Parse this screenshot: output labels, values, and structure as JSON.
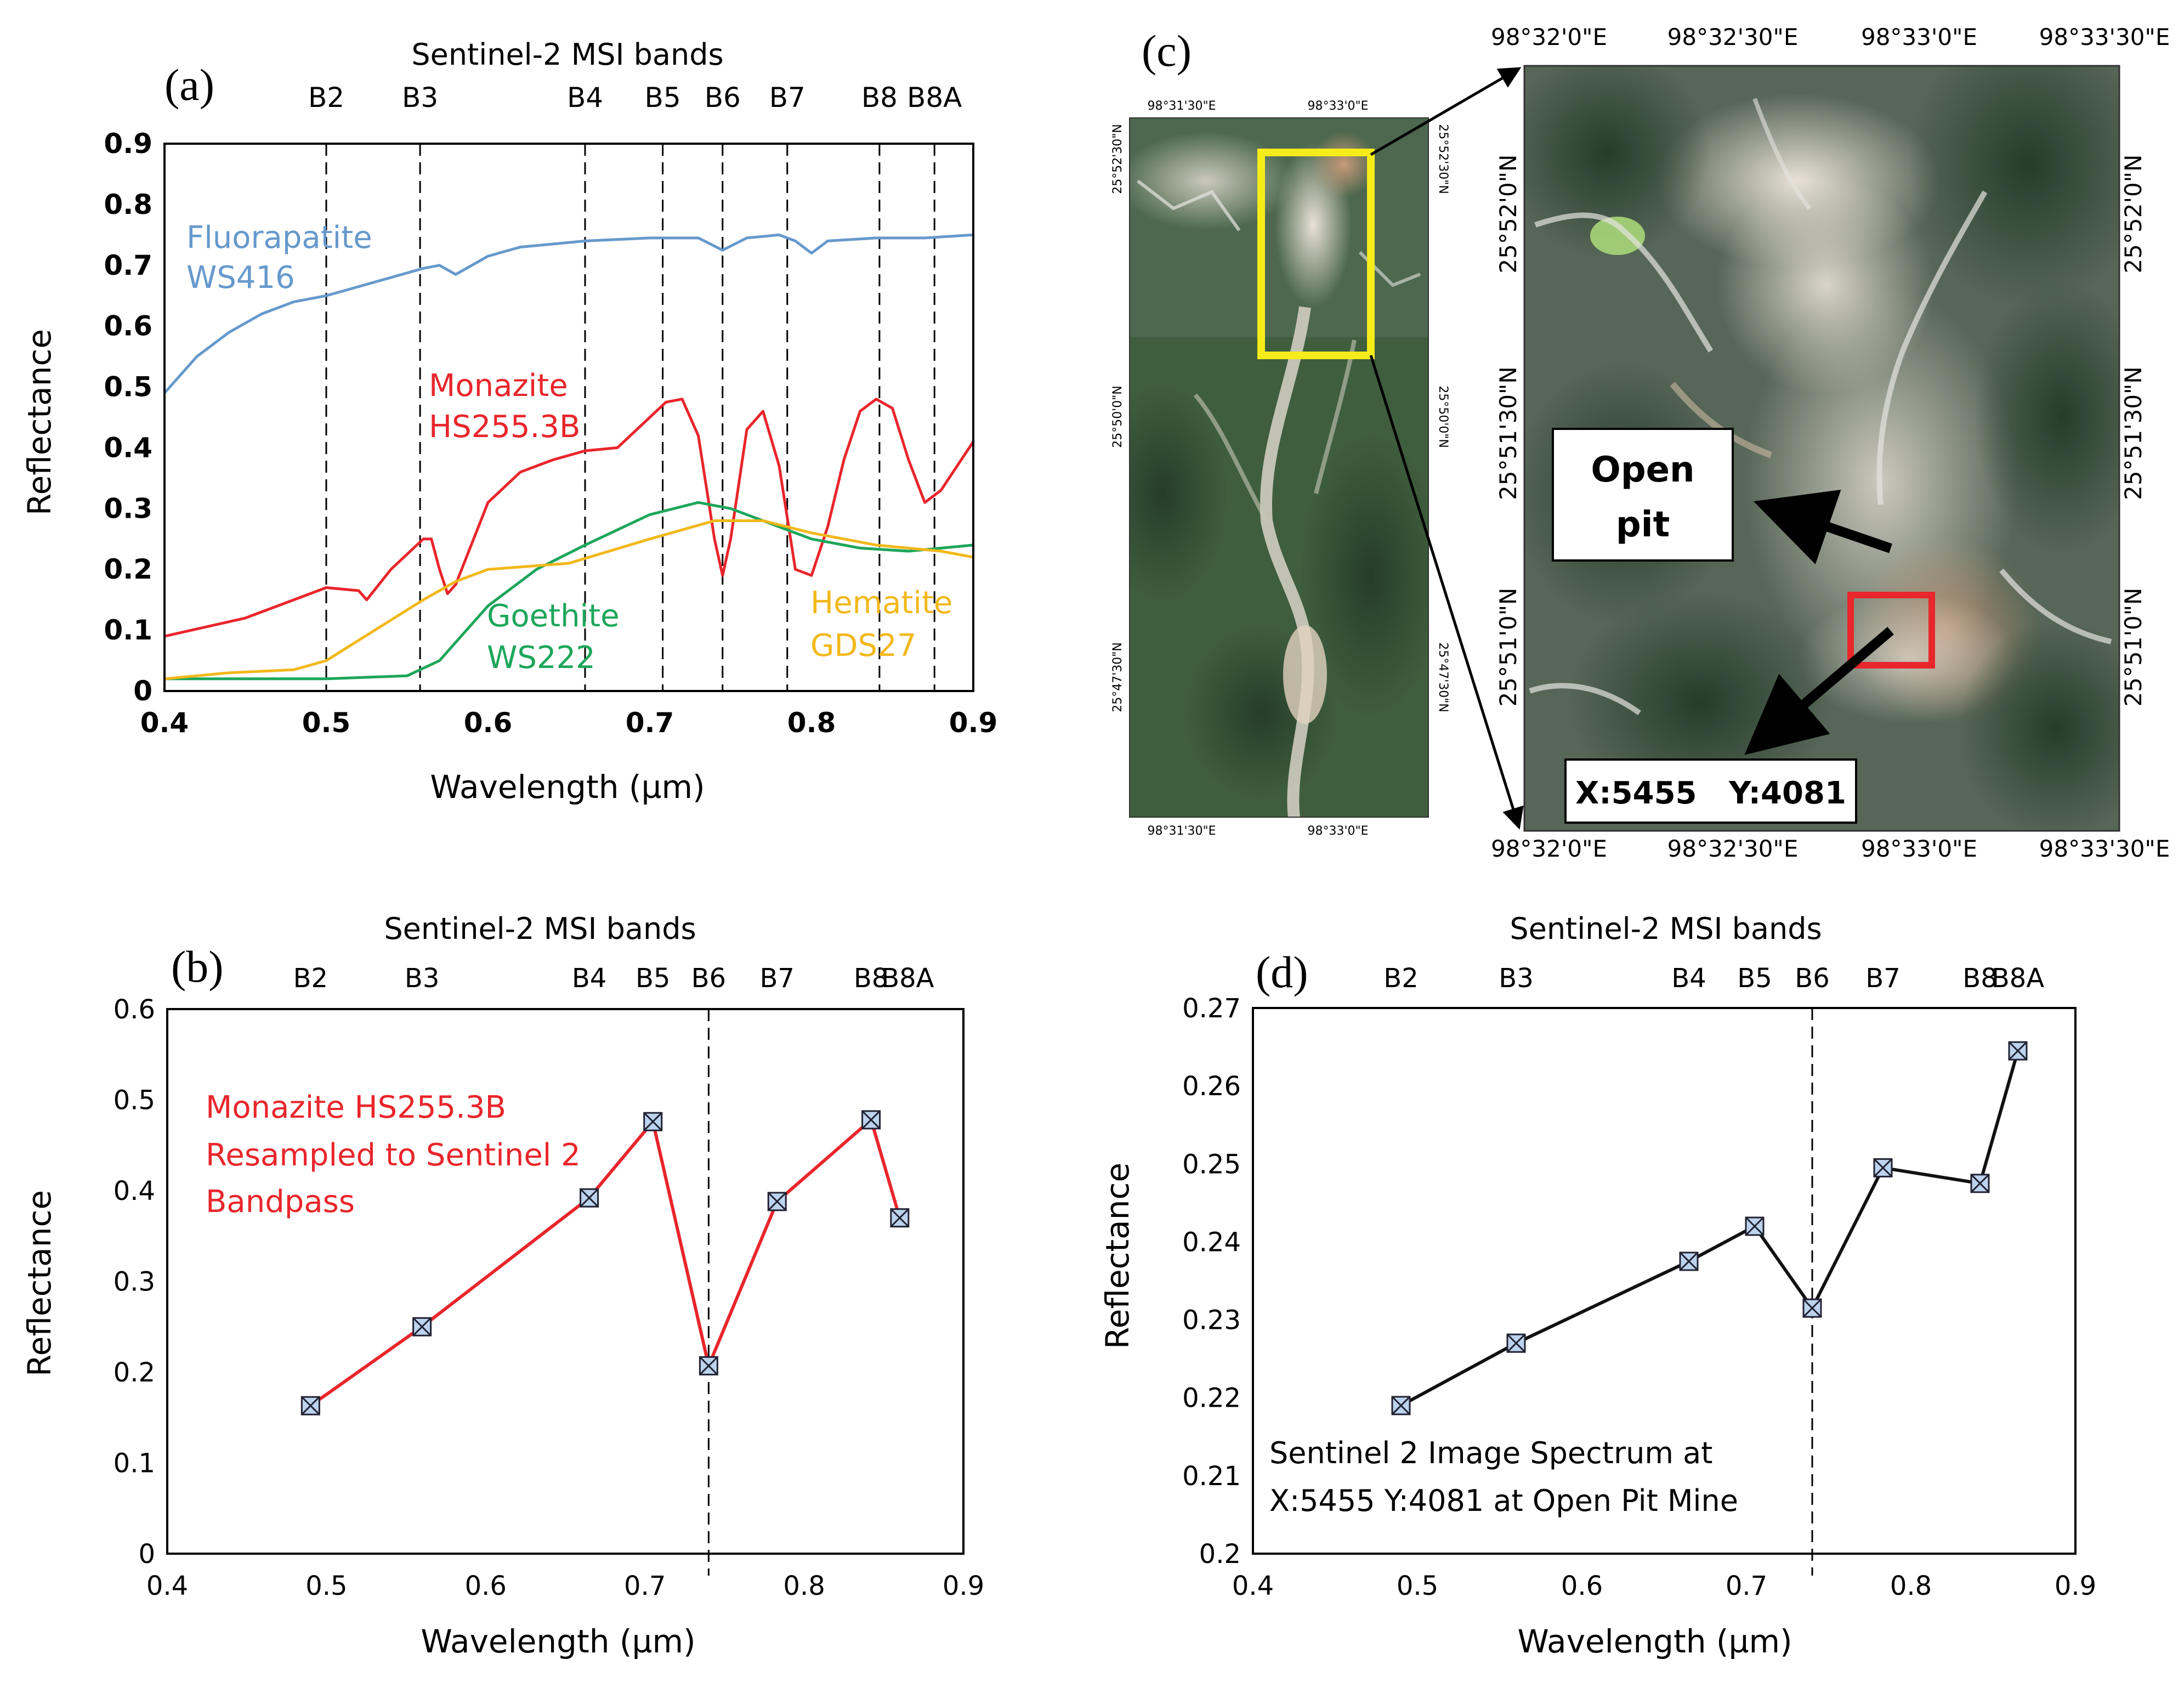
{
  "chart_data": [
    {
      "panel": "a",
      "type": "line",
      "panel_label": "(a)",
      "title": "Sentinel-2 MSI bands",
      "xlabel": "Wavelength (µm)",
      "ylabel": "Reflectance",
      "xlim": [
        0.4,
        0.9
      ],
      "ylim": [
        0,
        0.9
      ],
      "xticks": [
        "0.4",
        "0.5",
        "0.6",
        "0.7",
        "0.8",
        "0.9"
      ],
      "yticks": [
        "0",
        "0.1",
        "0.2",
        "0.3",
        "0.4",
        "0.5",
        "0.6",
        "0.7",
        "0.8",
        "0.9"
      ],
      "bands": [
        {
          "name": "B2",
          "wavelength": 0.49
        },
        {
          "name": "B3",
          "wavelength": 0.56
        },
        {
          "name": "B4",
          "wavelength": 0.665
        },
        {
          "name": "B5",
          "wavelength": 0.705
        },
        {
          "name": "B6",
          "wavelength": 0.74
        },
        {
          "name": "B7",
          "wavelength": 0.783
        },
        {
          "name": "B8",
          "wavelength": 0.842
        },
        {
          "name": "B8A",
          "wavelength": 0.865
        }
      ],
      "band_line_wavelengths": [
        0.5,
        0.558,
        0.66,
        0.708,
        0.745,
        0.785,
        0.842,
        0.876
      ],
      "series": [
        {
          "name": "Fluorapatite WS416",
          "label_lines": [
            "Fluorapatite",
            "WS416"
          ],
          "color": "#6699CC",
          "x": [
            0.4,
            0.42,
            0.44,
            0.46,
            0.48,
            0.5,
            0.52,
            0.54,
            0.56,
            0.57,
            0.58,
            0.6,
            0.62,
            0.64,
            0.66,
            0.7,
            0.73,
            0.745,
            0.76,
            0.78,
            0.79,
            0.8,
            0.81,
            0.84,
            0.87,
            0.9
          ],
          "y": [
            0.49,
            0.55,
            0.59,
            0.62,
            0.64,
            0.65,
            0.665,
            0.68,
            0.695,
            0.7,
            0.685,
            0.715,
            0.73,
            0.735,
            0.74,
            0.745,
            0.745,
            0.725,
            0.745,
            0.75,
            0.74,
            0.72,
            0.74,
            0.745,
            0.745,
            0.75
          ]
        },
        {
          "name": "Monazite HS255.3B",
          "label_lines": [
            "Monazite",
            "HS255.3B"
          ],
          "color": "#E8262C",
          "x": [
            0.4,
            0.45,
            0.5,
            0.52,
            0.525,
            0.54,
            0.56,
            0.565,
            0.57,
            0.575,
            0.58,
            0.6,
            0.62,
            0.64,
            0.66,
            0.68,
            0.7,
            0.71,
            0.72,
            0.73,
            0.74,
            0.745,
            0.75,
            0.76,
            0.77,
            0.78,
            0.79,
            0.8,
            0.81,
            0.82,
            0.83,
            0.84,
            0.85,
            0.86,
            0.87,
            0.88,
            0.9
          ],
          "y": [
            0.09,
            0.12,
            0.17,
            0.165,
            0.15,
            0.2,
            0.25,
            0.25,
            0.2,
            0.16,
            0.175,
            0.31,
            0.36,
            0.38,
            0.395,
            0.4,
            0.45,
            0.475,
            0.48,
            0.42,
            0.25,
            0.19,
            0.25,
            0.43,
            0.46,
            0.37,
            0.2,
            0.19,
            0.27,
            0.38,
            0.46,
            0.48,
            0.465,
            0.38,
            0.31,
            0.33,
            0.41
          ]
        },
        {
          "name": "Goethite WS222",
          "label_lines": [
            "Goethite",
            "WS222"
          ],
          "color": "#1DA65A",
          "x": [
            0.4,
            0.45,
            0.5,
            0.55,
            0.57,
            0.6,
            0.63,
            0.66,
            0.7,
            0.73,
            0.75,
            0.78,
            0.8,
            0.83,
            0.86,
            0.9
          ],
          "y": [
            0.02,
            0.02,
            0.02,
            0.025,
            0.05,
            0.14,
            0.2,
            0.24,
            0.29,
            0.31,
            0.3,
            0.27,
            0.25,
            0.235,
            0.23,
            0.24
          ]
        },
        {
          "name": "Hematite GDS27",
          "label_lines": [
            "Hematite",
            "GDS27"
          ],
          "color": "#F2B81C",
          "x": [
            0.4,
            0.44,
            0.48,
            0.5,
            0.53,
            0.56,
            0.58,
            0.6,
            0.65,
            0.7,
            0.74,
            0.77,
            0.8,
            0.84,
            0.88,
            0.9
          ],
          "y": [
            0.02,
            0.03,
            0.035,
            0.05,
            0.1,
            0.15,
            0.18,
            0.2,
            0.21,
            0.25,
            0.28,
            0.28,
            0.26,
            0.24,
            0.23,
            0.22
          ]
        }
      ]
    },
    {
      "panel": "b",
      "type": "line",
      "panel_label": "(b)",
      "title": "Sentinel-2 MSI bands",
      "xlabel": "Wavelength (µm)",
      "ylabel": "Reflectance",
      "xlim": [
        0.4,
        0.9
      ],
      "ylim": [
        0,
        0.6
      ],
      "xticks": [
        "0.4",
        "0.5",
        "0.6",
        "0.7",
        "0.8",
        "0.9"
      ],
      "yticks": [
        "0",
        "0.1",
        "0.2",
        "0.3",
        "0.4",
        "0.5",
        "0.6"
      ],
      "bands": [
        {
          "name": "B2",
          "wavelength": 0.49
        },
        {
          "name": "B3",
          "wavelength": 0.56
        },
        {
          "name": "B4",
          "wavelength": 0.665
        },
        {
          "name": "B5",
          "wavelength": 0.705
        },
        {
          "name": "B6",
          "wavelength": 0.74
        },
        {
          "name": "B7",
          "wavelength": 0.783
        },
        {
          "name": "B8",
          "wavelength": 0.842
        },
        {
          "name": "B8A",
          "wavelength": 0.865
        }
      ],
      "divider_x": 0.74,
      "annotation": [
        "Monazite HS255.3B",
        "Resampled to Sentinel 2",
        "Bandpass"
      ],
      "series": [
        {
          "name": "Monazite HS255.3B resampled",
          "color": "#E8262C",
          "x": [
            0.49,
            0.56,
            0.665,
            0.705,
            0.74,
            0.783,
            0.842,
            0.86
          ],
          "y": [
            0.163,
            0.25,
            0.392,
            0.476,
            0.207,
            0.388,
            0.478,
            0.37
          ]
        }
      ]
    },
    {
      "panel": "d",
      "type": "line",
      "panel_label": "(d)",
      "title": "Sentinel-2 MSI bands",
      "xlabel": "Wavelength (µm)",
      "ylabel": "Reflectance",
      "xlim": [
        0.4,
        0.9
      ],
      "ylim": [
        0.2,
        0.27
      ],
      "xticks": [
        "0.4",
        "0.5",
        "0.6",
        "0.7",
        "0.8",
        "0.9"
      ],
      "yticks": [
        "0.2",
        "0.21",
        "0.22",
        "0.23",
        "0.24",
        "0.25",
        "0.26",
        "0.27"
      ],
      "bands": [
        {
          "name": "B2",
          "wavelength": 0.49
        },
        {
          "name": "B3",
          "wavelength": 0.56
        },
        {
          "name": "B4",
          "wavelength": 0.665
        },
        {
          "name": "B5",
          "wavelength": 0.705
        },
        {
          "name": "B6",
          "wavelength": 0.74
        },
        {
          "name": "B7",
          "wavelength": 0.783
        },
        {
          "name": "B8",
          "wavelength": 0.842
        },
        {
          "name": "B8A",
          "wavelength": 0.865
        }
      ],
      "divider_x": 0.74,
      "annotation": [
        "Sentinel 2 Image Spectrum at",
        "X:5455 Y:4081 at Open Pit Mine"
      ],
      "series": [
        {
          "name": "Image spectrum X:5455 Y:4081",
          "color": "#111111",
          "x": [
            0.49,
            0.56,
            0.665,
            0.705,
            0.74,
            0.783,
            0.842,
            0.865
          ],
          "y": [
            0.219,
            0.227,
            0.2375,
            0.242,
            0.2315,
            0.2495,
            0.2475,
            0.2645
          ]
        }
      ]
    }
  ],
  "map": {
    "panel_label": "(c)",
    "overview_top_coords": [
      "98°31'30\"E",
      "98°33'0\"E"
    ],
    "overview_bottom_coords": [
      "98°31'30\"E",
      "98°33'0\"E"
    ],
    "overview_left_coords": [
      "25°52'30\"N",
      "25°50'0\"N",
      "25°47'30\"N"
    ],
    "overview_right_coords": [
      "25°52'30\"N",
      "25°50'0\"N",
      "25°47'30\"N"
    ],
    "detail_top_coords": [
      "98°32'0\"E",
      "98°32'30\"E",
      "98°33'0\"E",
      "98°33'30\"E"
    ],
    "detail_bottom_coords": [
      "98°32'0\"E",
      "98°32'30\"E",
      "98°33'0\"E",
      "98°33'30\"E"
    ],
    "detail_lat_coords": [
      "25°52'0\"N",
      "25°51'30\"N",
      "25°51'0\"N"
    ],
    "open_pit_lines": [
      "Open",
      "pit"
    ],
    "location_text": "X:5455   Y:4081",
    "highlight_yellow": "#F5EC1A",
    "highlight_red": "#E8262C"
  }
}
